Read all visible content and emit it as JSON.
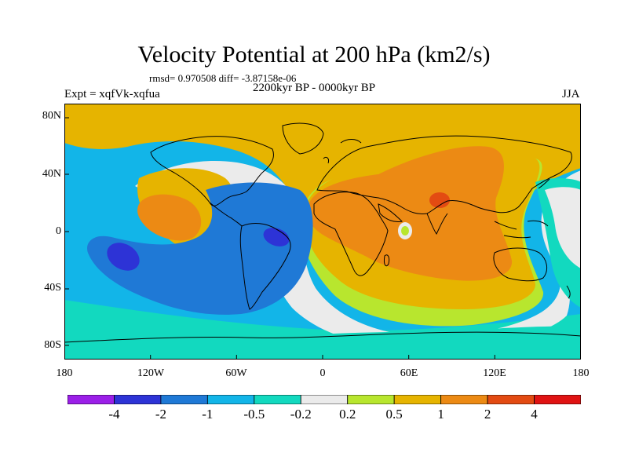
{
  "title": "Velocity Potential at 200 hPa (km2/s)",
  "stats_line": "rmsd= 0.970508 diff= -3.87158e-06",
  "left_label": "Expt = xqfVk-xqfua",
  "center_label": "2200kyr BP - 0000kyr BP",
  "right_label": "JJA",
  "lat_ticks": [
    "80N",
    "40N",
    "0",
    "40S",
    "80S"
  ],
  "lon_ticks": [
    "180",
    "120W",
    "60W",
    "0",
    "60E",
    "120E",
    "180"
  ],
  "colorbar": {
    "colors": [
      "#9b1fe8",
      "#2d33d6",
      "#1f79d6",
      "#12b5e8",
      "#12d9bf",
      "#ebebeb",
      "#b8e62e",
      "#e6b400",
      "#ec8a14",
      "#e34b12",
      "#e01313"
    ],
    "labels": [
      "-4",
      "-2",
      "-1",
      "-0.5",
      "-0.2",
      "0.2",
      "0.5",
      "1",
      "2",
      "4"
    ]
  },
  "map_colors": {
    "neg_0_5": "#12b5e8",
    "neg_1": "#1f79d6",
    "neg_2": "#2d33d6",
    "neg_0_2": "#12d9bf",
    "near_zero": "#ebebeb",
    "pos_0_2": "#b8e62e",
    "pos_0_5": "#e6b400",
    "pos_1": "#ec8a14",
    "pos_2": "#e34b12"
  }
}
